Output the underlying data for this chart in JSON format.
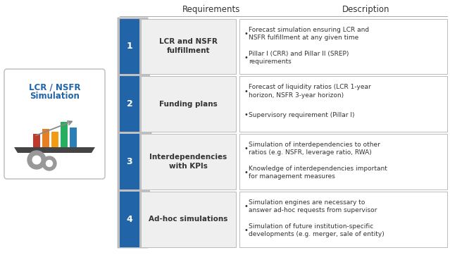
{
  "header_requirements": "Requirements",
  "header_description": "Description",
  "blue_color": "#2165A8",
  "box_bg": "#EFEFEF",
  "desc_bg": "#FFFFFF",
  "border_color": "#BBBBBB",
  "background_color": "#FFFFFF",
  "rows": [
    {
      "number": "1",
      "requirement": "LCR and NSFR\nfulfillment",
      "bullets": [
        "Forecast simulation ensuring LCR and\nNSFR fulfillment at any given time",
        "Pillar I (CRR) and Pillar II (SREP)\nrequirements"
      ]
    },
    {
      "number": "2",
      "requirement": "Funding plans",
      "bullets": [
        "Forecast of liquidity ratios (LCR 1-year\nhorizon, NSFR 3-year horizon)",
        "Supervisory requirement (Pillar I)"
      ]
    },
    {
      "number": "3",
      "requirement": "Interdependencies\nwith KPIs",
      "bullets": [
        "Simulation of interdependencies to other\nratios (e.g. NSFR, leverage ratio, RWA)",
        "Knowledge of interdependencies important\nfor management measures"
      ]
    },
    {
      "number": "4",
      "requirement": "Ad-hoc simulations",
      "bullets": [
        "Simulation engines are necessary to\nanswer ad-hoc requests from supervisor",
        "Simulation of future institution-specific\ndevelopments (e.g. merger, sale of entity)"
      ]
    }
  ],
  "lcr_box_text_line1": "LCR / NSFR",
  "lcr_box_text_line2": "Simulation",
  "funnel_color": "#C0C0C0",
  "funnel_edge_color": "#AAAAAA",
  "lcr_box_border": "#BBBBBB",
  "lcr_text_color": "#2165A8"
}
